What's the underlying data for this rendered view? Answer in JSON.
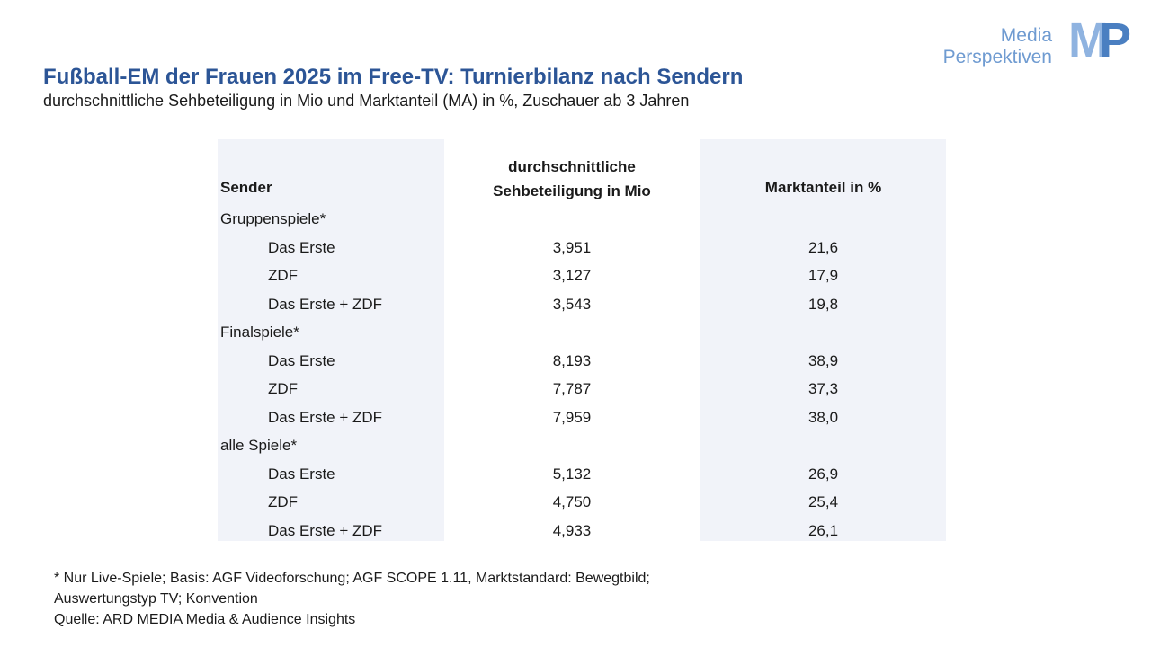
{
  "logo": {
    "line1": "Media",
    "line2": "Perspektiven",
    "mark_m": "M",
    "mark_p": "P"
  },
  "title": "Fußball-EM der Frauen 2025 im Free-TV: Turnierbilanz nach Sendern",
  "subtitle": "durchschnittliche Sehbeteiligung in Mio und Marktanteil (MA) in %, Zuschauer ab 3 Jahren",
  "table": {
    "headers": {
      "sender": "Sender",
      "seh_line1": "durchschnittliche",
      "seh_line2": "Sehbeteiligung in Mio",
      "ma": "Marktanteil in %"
    },
    "rows": [
      {
        "label": "Gruppenspiele*",
        "seh": "",
        "ma": ""
      },
      {
        "label": "Das Erste",
        "seh": "3,951",
        "ma": "21,6"
      },
      {
        "label": "ZDF",
        "seh": "3,127",
        "ma": "17,9"
      },
      {
        "label": "Das Erste + ZDF",
        "seh": "3,543",
        "ma": "19,8"
      },
      {
        "label": "Finalspiele*",
        "seh": "",
        "ma": ""
      },
      {
        "label": "Das Erste",
        "seh": "8,193",
        "ma": "38,9"
      },
      {
        "label": "ZDF",
        "seh": "7,787",
        "ma": "37,3"
      },
      {
        "label": "Das Erste + ZDF",
        "seh": "7,959",
        "ma": "38,0"
      },
      {
        "label": "alle Spiele*",
        "seh": "",
        "ma": ""
      },
      {
        "label": "Das Erste",
        "seh": "5,132",
        "ma": "26,9"
      },
      {
        "label": "ZDF",
        "seh": "4,750",
        "ma": "25,4"
      },
      {
        "label": "Das Erste + ZDF",
        "seh": "4,933",
        "ma": "26,1"
      }
    ]
  },
  "footnote": {
    "line1": "* Nur Live-Spiele; Basis:  AGF Videoforschung; AGF SCOPE 1.11, Marktstandard: Bewegtbild;",
    "line2": "Auswertungstyp TV; Konvention",
    "line3": "Quelle: ARD MEDIA Media & Audience Insights"
  }
}
